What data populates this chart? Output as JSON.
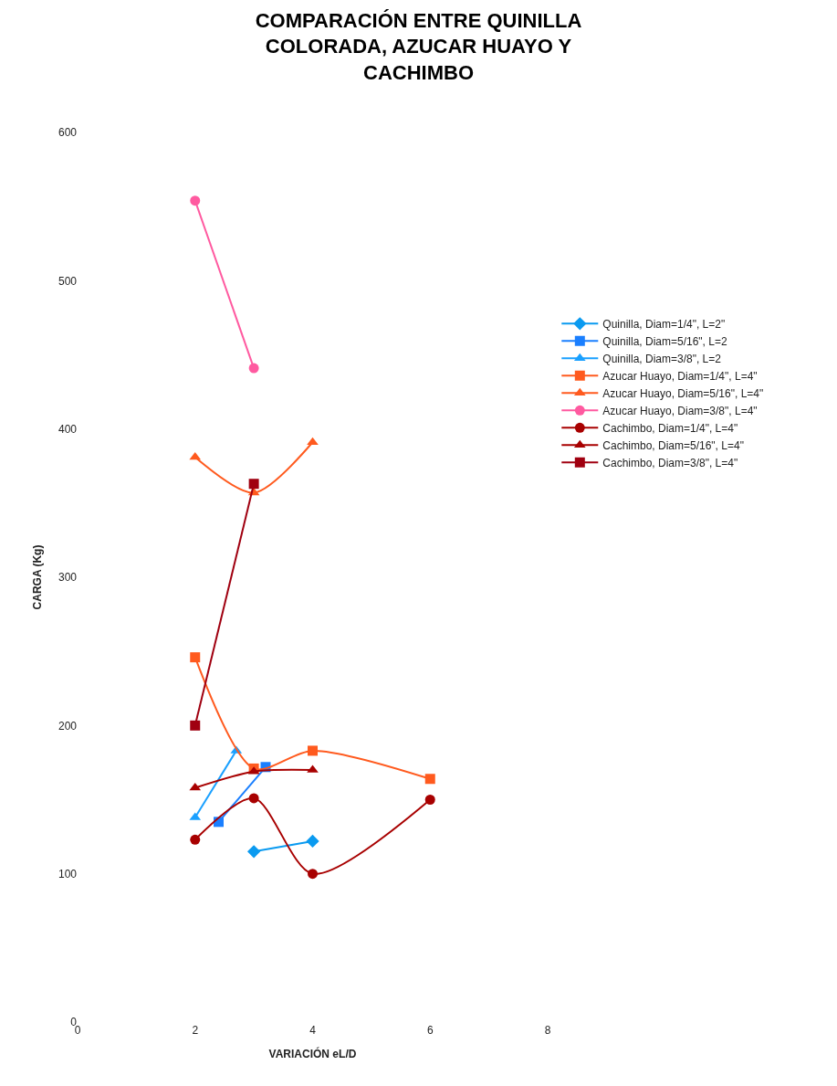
{
  "chart_data": {
    "type": "line",
    "title": "COMPARACIÓN ENTRE QUINILLA COLORADA, AZUCAR HUAYO Y CACHIMBO",
    "xlabel": "VARIACIÓN eL/D",
    "ylabel": "CARGA (Kg)",
    "xlim": [
      0,
      8
    ],
    "xticks": [
      0,
      2,
      4,
      6,
      8
    ],
    "ylim": [
      0,
      600
    ],
    "yticks": [
      0,
      100,
      200,
      300,
      400,
      500,
      600
    ],
    "legend": "right",
    "series": [
      {
        "name": "Quinilla, Diam=1/4\", L=2\"",
        "color": "#0a9af0",
        "marker": "diamond",
        "x": [
          3,
          4
        ],
        "values": [
          115,
          122
        ]
      },
      {
        "name": "Quinilla, Diam=5/16\", L=2",
        "color": "#1a7fff",
        "marker": "square",
        "x": [
          2.4,
          3.2
        ],
        "values": [
          135,
          172
        ]
      },
      {
        "name": "Quinilla, Diam=3/8\", L=2",
        "color": "#1aa0ff",
        "marker": "triangle",
        "x": [
          2,
          2.7
        ],
        "values": [
          138,
          183
        ]
      },
      {
        "name": "Azucar Huayo, Diam=1/4\", L=4\"",
        "color": "#ff5a1e",
        "marker": "square",
        "x": [
          2,
          3,
          4,
          6
        ],
        "values": [
          246,
          171,
          183,
          164
        ]
      },
      {
        "name": "Azucar Huayo, Diam=5/16\", L=4\"",
        "color": "#ff5a1e",
        "marker": "triangle",
        "x": [
          2,
          3,
          4
        ],
        "values": [
          381,
          357,
          391
        ]
      },
      {
        "name": "Azucar Huayo, Diam=3/8\", L=4\"",
        "color": "#ff5aa0",
        "marker": "circle",
        "x": [
          2,
          3
        ],
        "values": [
          554,
          441
        ]
      },
      {
        "name": "Cachimbo, Diam=1/4\", L=4\"",
        "color": "#a80000",
        "marker": "circle",
        "x": [
          2,
          3,
          4,
          6
        ],
        "values": [
          123,
          151,
          100,
          150
        ]
      },
      {
        "name": "Cachimbo, Diam=5/16\", L=4\"",
        "color": "#a80000",
        "marker": "triangle",
        "x": [
          2,
          3,
          4
        ],
        "values": [
          158,
          169,
          170
        ]
      },
      {
        "name": "Cachimbo, Diam=3/8\", L=4\"",
        "color": "#a00010",
        "marker": "square",
        "x": [
          2,
          3
        ],
        "values": [
          200,
          363
        ]
      }
    ]
  }
}
